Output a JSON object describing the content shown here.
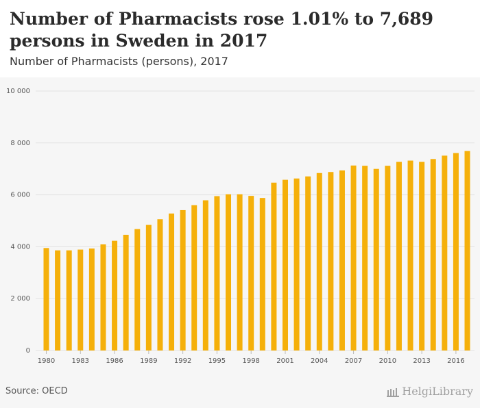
{
  "header": {
    "title": "Number of Pharmacists rose 1.01% to 7,689 persons in Sweden in 2017",
    "subtitle": "Number of Pharmacists (persons), 2017"
  },
  "footer": {
    "source": "Source: OECD",
    "logo_text": "HelgiLibrary"
  },
  "colors": {
    "bar": "#f5b00a",
    "grid": "#e2e2e2",
    "tick_text": "#555555"
  },
  "chart_data": {
    "type": "bar",
    "title": "Number of Pharmacists rose 1.01% to 7,689 persons in Sweden in 2017",
    "subtitle": "Number of Pharmacists (persons), 2017",
    "categories": [
      1980,
      1981,
      1982,
      1983,
      1984,
      1985,
      1986,
      1987,
      1988,
      1989,
      1990,
      1991,
      1992,
      1993,
      1994,
      1995,
      1996,
      1997,
      1998,
      1999,
      2000,
      2001,
      2002,
      2003,
      2004,
      2005,
      2006,
      2007,
      2008,
      2009,
      2010,
      2011,
      2012,
      2013,
      2014,
      2015,
      2016,
      2017
    ],
    "values": [
      3950,
      3860,
      3860,
      3890,
      3930,
      4090,
      4230,
      4460,
      4680,
      4840,
      5060,
      5280,
      5410,
      5600,
      5790,
      5950,
      6020,
      6020,
      5960,
      5880,
      6470,
      6580,
      6630,
      6710,
      6840,
      6880,
      6940,
      7130,
      7120,
      7000,
      7120,
      7270,
      7320,
      7270,
      7380,
      7510,
      7610,
      7689
    ],
    "x_tick_labels": [
      "1980",
      "1983",
      "1986",
      "1989",
      "1992",
      "1995",
      "1998",
      "2001",
      "2004",
      "2007",
      "2010",
      "2013",
      "2016"
    ],
    "y_ticks": [
      0,
      2000,
      4000,
      6000,
      8000,
      10000
    ],
    "y_tick_labels": [
      "0",
      "2 000",
      "4 000",
      "6 000",
      "8 000",
      "10 000"
    ],
    "ylim": [
      0,
      10000
    ],
    "grid": true,
    "legend": "none"
  }
}
